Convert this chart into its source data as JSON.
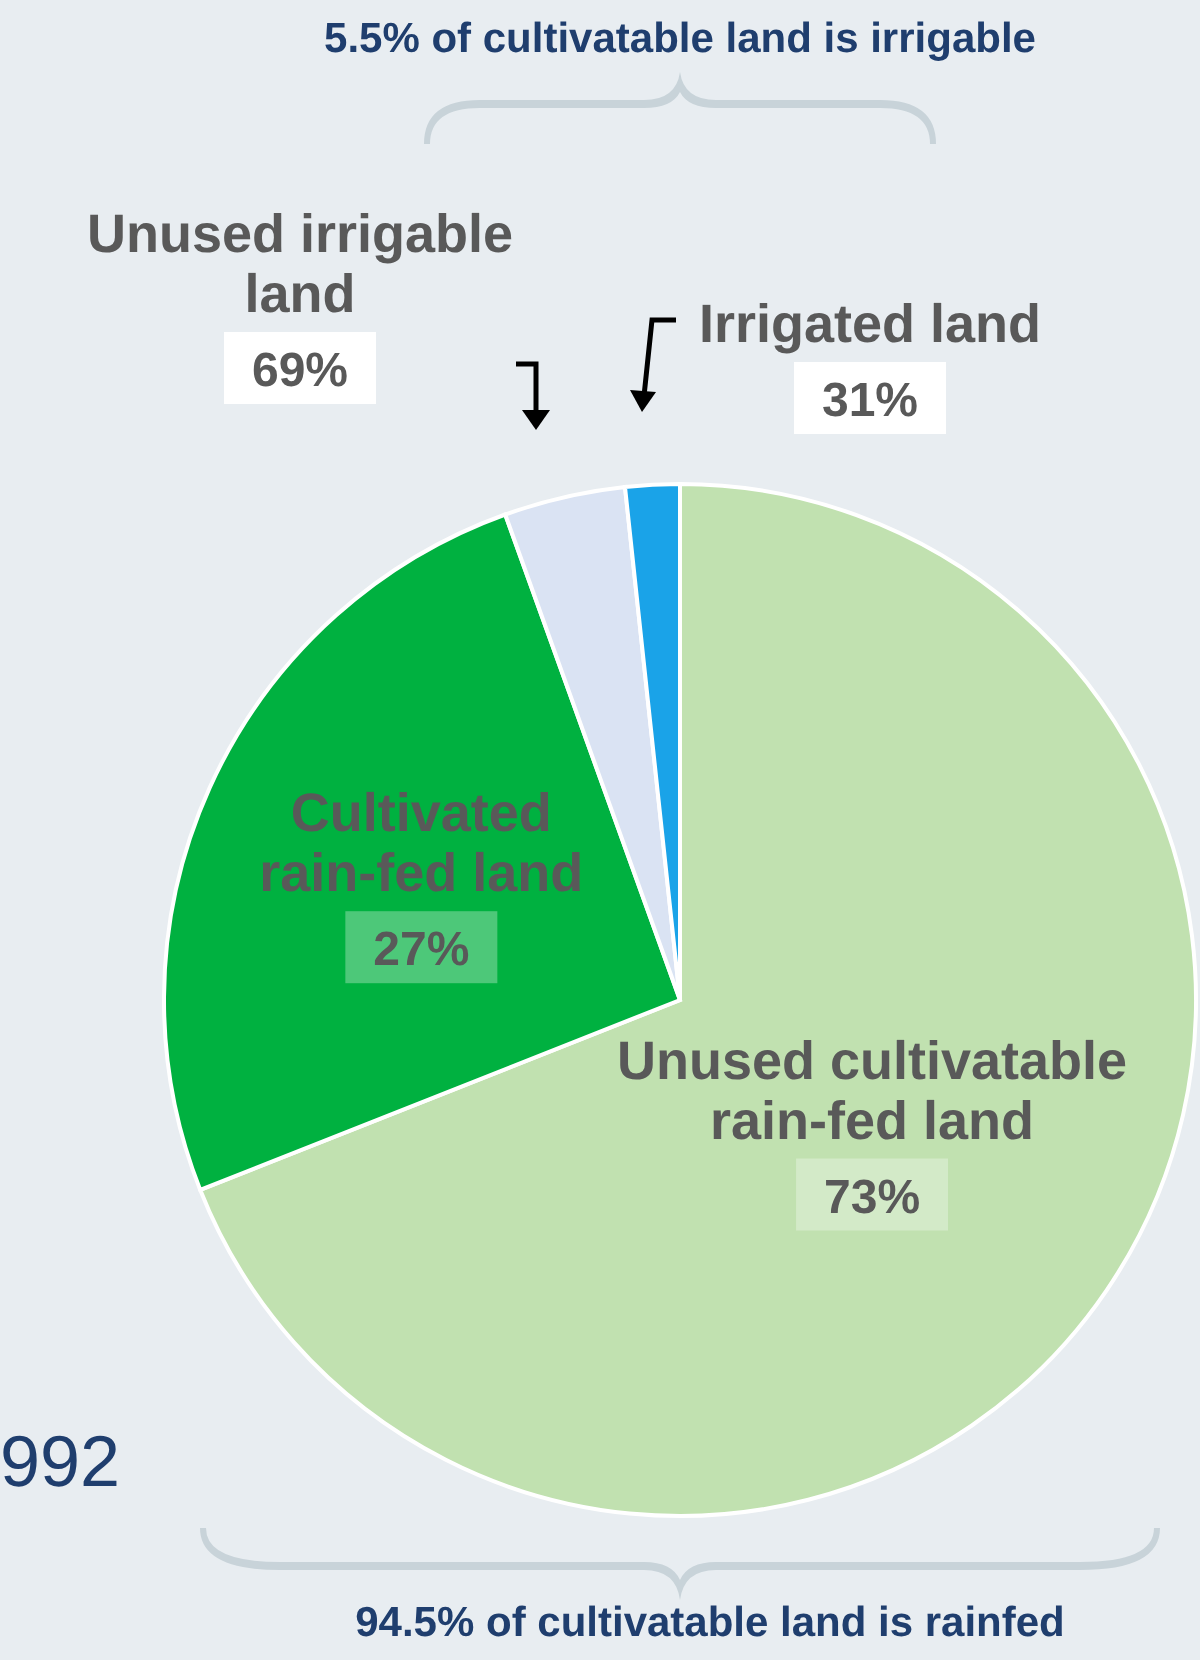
{
  "chart_data": {
    "type": "pie",
    "categories": [
      "Unused cultivatable rain-fed land",
      "Cultivated rain-fed land",
      "Unused irrigable land",
      "Irrigated land"
    ],
    "values": [
      69.0,
      25.5,
      3.8,
      1.7
    ],
    "colors": [
      "#c1e1b0",
      "#00b140",
      "#dae3f3",
      "#1aa3e8"
    ],
    "annotations": [
      "5.5% of cultivatable land is irrigable",
      "94.5% of cultivatable land is rainfed",
      "992",
      "73%",
      "27%",
      "69%",
      "31%"
    ]
  }
}
